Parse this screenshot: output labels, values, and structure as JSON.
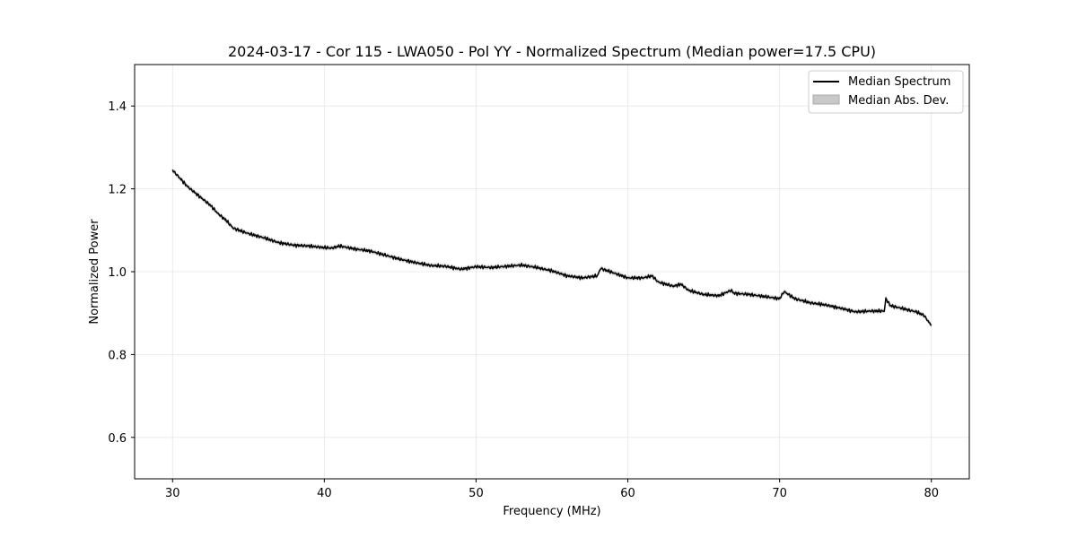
{
  "chart_data": {
    "type": "line",
    "title": "2024-03-17 - Cor 115 - LWA050 - Pol YY - Normalized Spectrum (Median power=17.5 CPU)",
    "xlabel": "Frequency (MHz)",
    "ylabel": "Normalized Power",
    "xlim": [
      27.5,
      82.5
    ],
    "ylim": [
      0.5,
      1.5
    ],
    "xticks": [
      30,
      40,
      50,
      60,
      70,
      80
    ],
    "yticks": [
      0.6,
      0.8,
      1.0,
      1.2,
      1.4
    ],
    "xtick_labels": [
      "30",
      "40",
      "50",
      "60",
      "70",
      "80"
    ],
    "ytick_labels": [
      "0.6",
      "0.8",
      "1.0",
      "1.2",
      "1.4"
    ],
    "grid": true,
    "legend_position": "top-right",
    "legend": [
      "Median Spectrum",
      "Median Abs. Dev."
    ],
    "series": [
      {
        "name": "Median Spectrum",
        "color": "#000000",
        "x": [
          30,
          30.5,
          31,
          31.5,
          32,
          32.5,
          33,
          33.5,
          34,
          35,
          36,
          37,
          38,
          39,
          40,
          40.5,
          41,
          42,
          43,
          44,
          45,
          46,
          47,
          48,
          49,
          50,
          51,
          52,
          53,
          54,
          55,
          56,
          57,
          58,
          58.2,
          59,
          60,
          61,
          61.6,
          62,
          63,
          63.5,
          64,
          65,
          66,
          66.8,
          67,
          68,
          69,
          70,
          70.3,
          71,
          72,
          73,
          74,
          75,
          76,
          76.9,
          77.0,
          77.3,
          78,
          79,
          79.5,
          80
        ],
        "y": [
          1.245,
          1.225,
          1.205,
          1.19,
          1.175,
          1.16,
          1.14,
          1.125,
          1.105,
          1.092,
          1.082,
          1.07,
          1.064,
          1.062,
          1.058,
          1.057,
          1.062,
          1.055,
          1.05,
          1.04,
          1.03,
          1.022,
          1.015,
          1.013,
          1.006,
          1.012,
          1.01,
          1.013,
          1.016,
          1.01,
          1.002,
          0.99,
          0.985,
          0.99,
          1.008,
          0.998,
          0.985,
          0.985,
          0.99,
          0.975,
          0.965,
          0.97,
          0.955,
          0.945,
          0.942,
          0.955,
          0.948,
          0.945,
          0.94,
          0.935,
          0.952,
          0.935,
          0.925,
          0.92,
          0.912,
          0.903,
          0.905,
          0.905,
          0.935,
          0.918,
          0.912,
          0.903,
          0.895,
          0.87
        ]
      }
    ],
    "band": {
      "name": "Median Abs. Dev.",
      "color": "#c8c8c8",
      "half_width": 0.005
    }
  }
}
